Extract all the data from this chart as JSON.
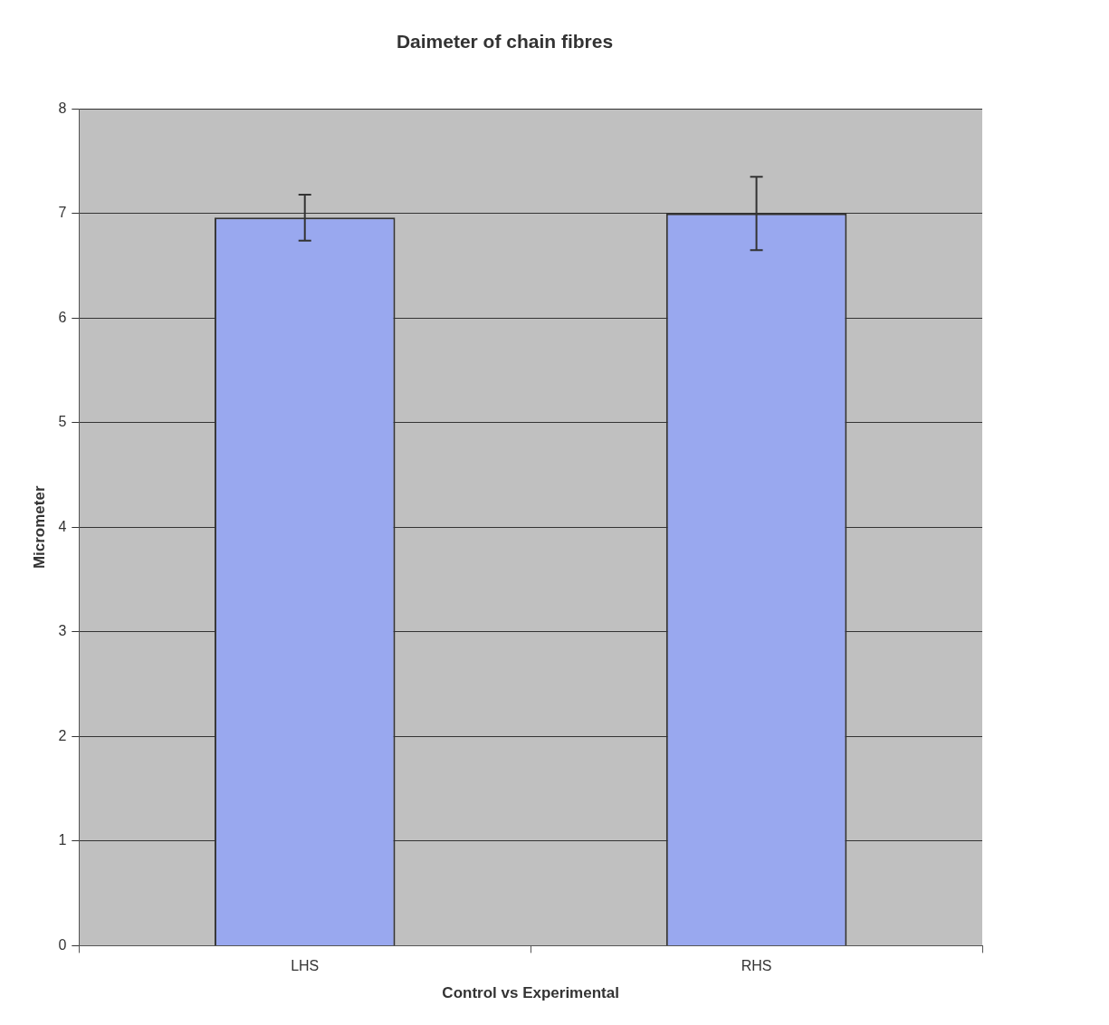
{
  "chart_data": {
    "type": "bar",
    "title": "Daimeter of chain fibres",
    "xlabel": "Control vs Experimental",
    "ylabel": "Micrometer",
    "categories": [
      "LHS",
      "RHS"
    ],
    "values": [
      6.96,
      7.0
    ],
    "errors": [
      0.22,
      0.35
    ],
    "color": "#99a8ef",
    "ylim": [
      0,
      8
    ],
    "yticks": [
      0,
      1,
      2,
      3,
      4,
      5,
      6,
      7,
      8
    ],
    "grid": "y",
    "legend": false
  }
}
